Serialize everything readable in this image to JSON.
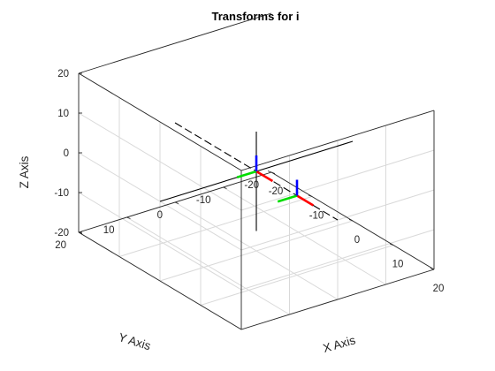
{
  "chart_data": {
    "type": "3d-line",
    "title": "Transforms for i",
    "xlabel": "X Axis",
    "ylabel": "Y Axis",
    "zlabel": "Z Axis",
    "xlim": [
      -20,
      20
    ],
    "ylim": [
      -20,
      20
    ],
    "zlim": [
      -20,
      20
    ],
    "xticks": [
      "-20",
      "-10",
      "0",
      "10",
      "20"
    ],
    "yticks": [
      "-20",
      "-10",
      "0",
      "10",
      "20"
    ],
    "zticks": [
      "-20",
      "-10",
      "0",
      "10",
      "20"
    ],
    "grid": true,
    "colors": {
      "frame_x": "#ff0000",
      "frame_y": "#00dd00",
      "frame_z": "#0000ff",
      "reference": "#000000",
      "grid": "#d9d9d9",
      "box": "#262626"
    },
    "reference_axes": [
      {
        "from": [
          -20,
          0,
          0
        ],
        "to": [
          20,
          0,
          0
        ],
        "style": "dashed"
      },
      {
        "from": [
          0,
          -20,
          0
        ],
        "to": [
          0,
          20,
          0
        ],
        "style": "solid"
      },
      {
        "from": [
          0,
          0,
          -15
        ],
        "to": [
          0,
          0,
          10
        ],
        "style": "solid"
      }
    ],
    "frames": [
      {
        "origin": [
          0,
          0,
          0
        ],
        "length": 4
      },
      {
        "origin": [
          10,
          0,
          0
        ],
        "length": 4
      }
    ]
  }
}
